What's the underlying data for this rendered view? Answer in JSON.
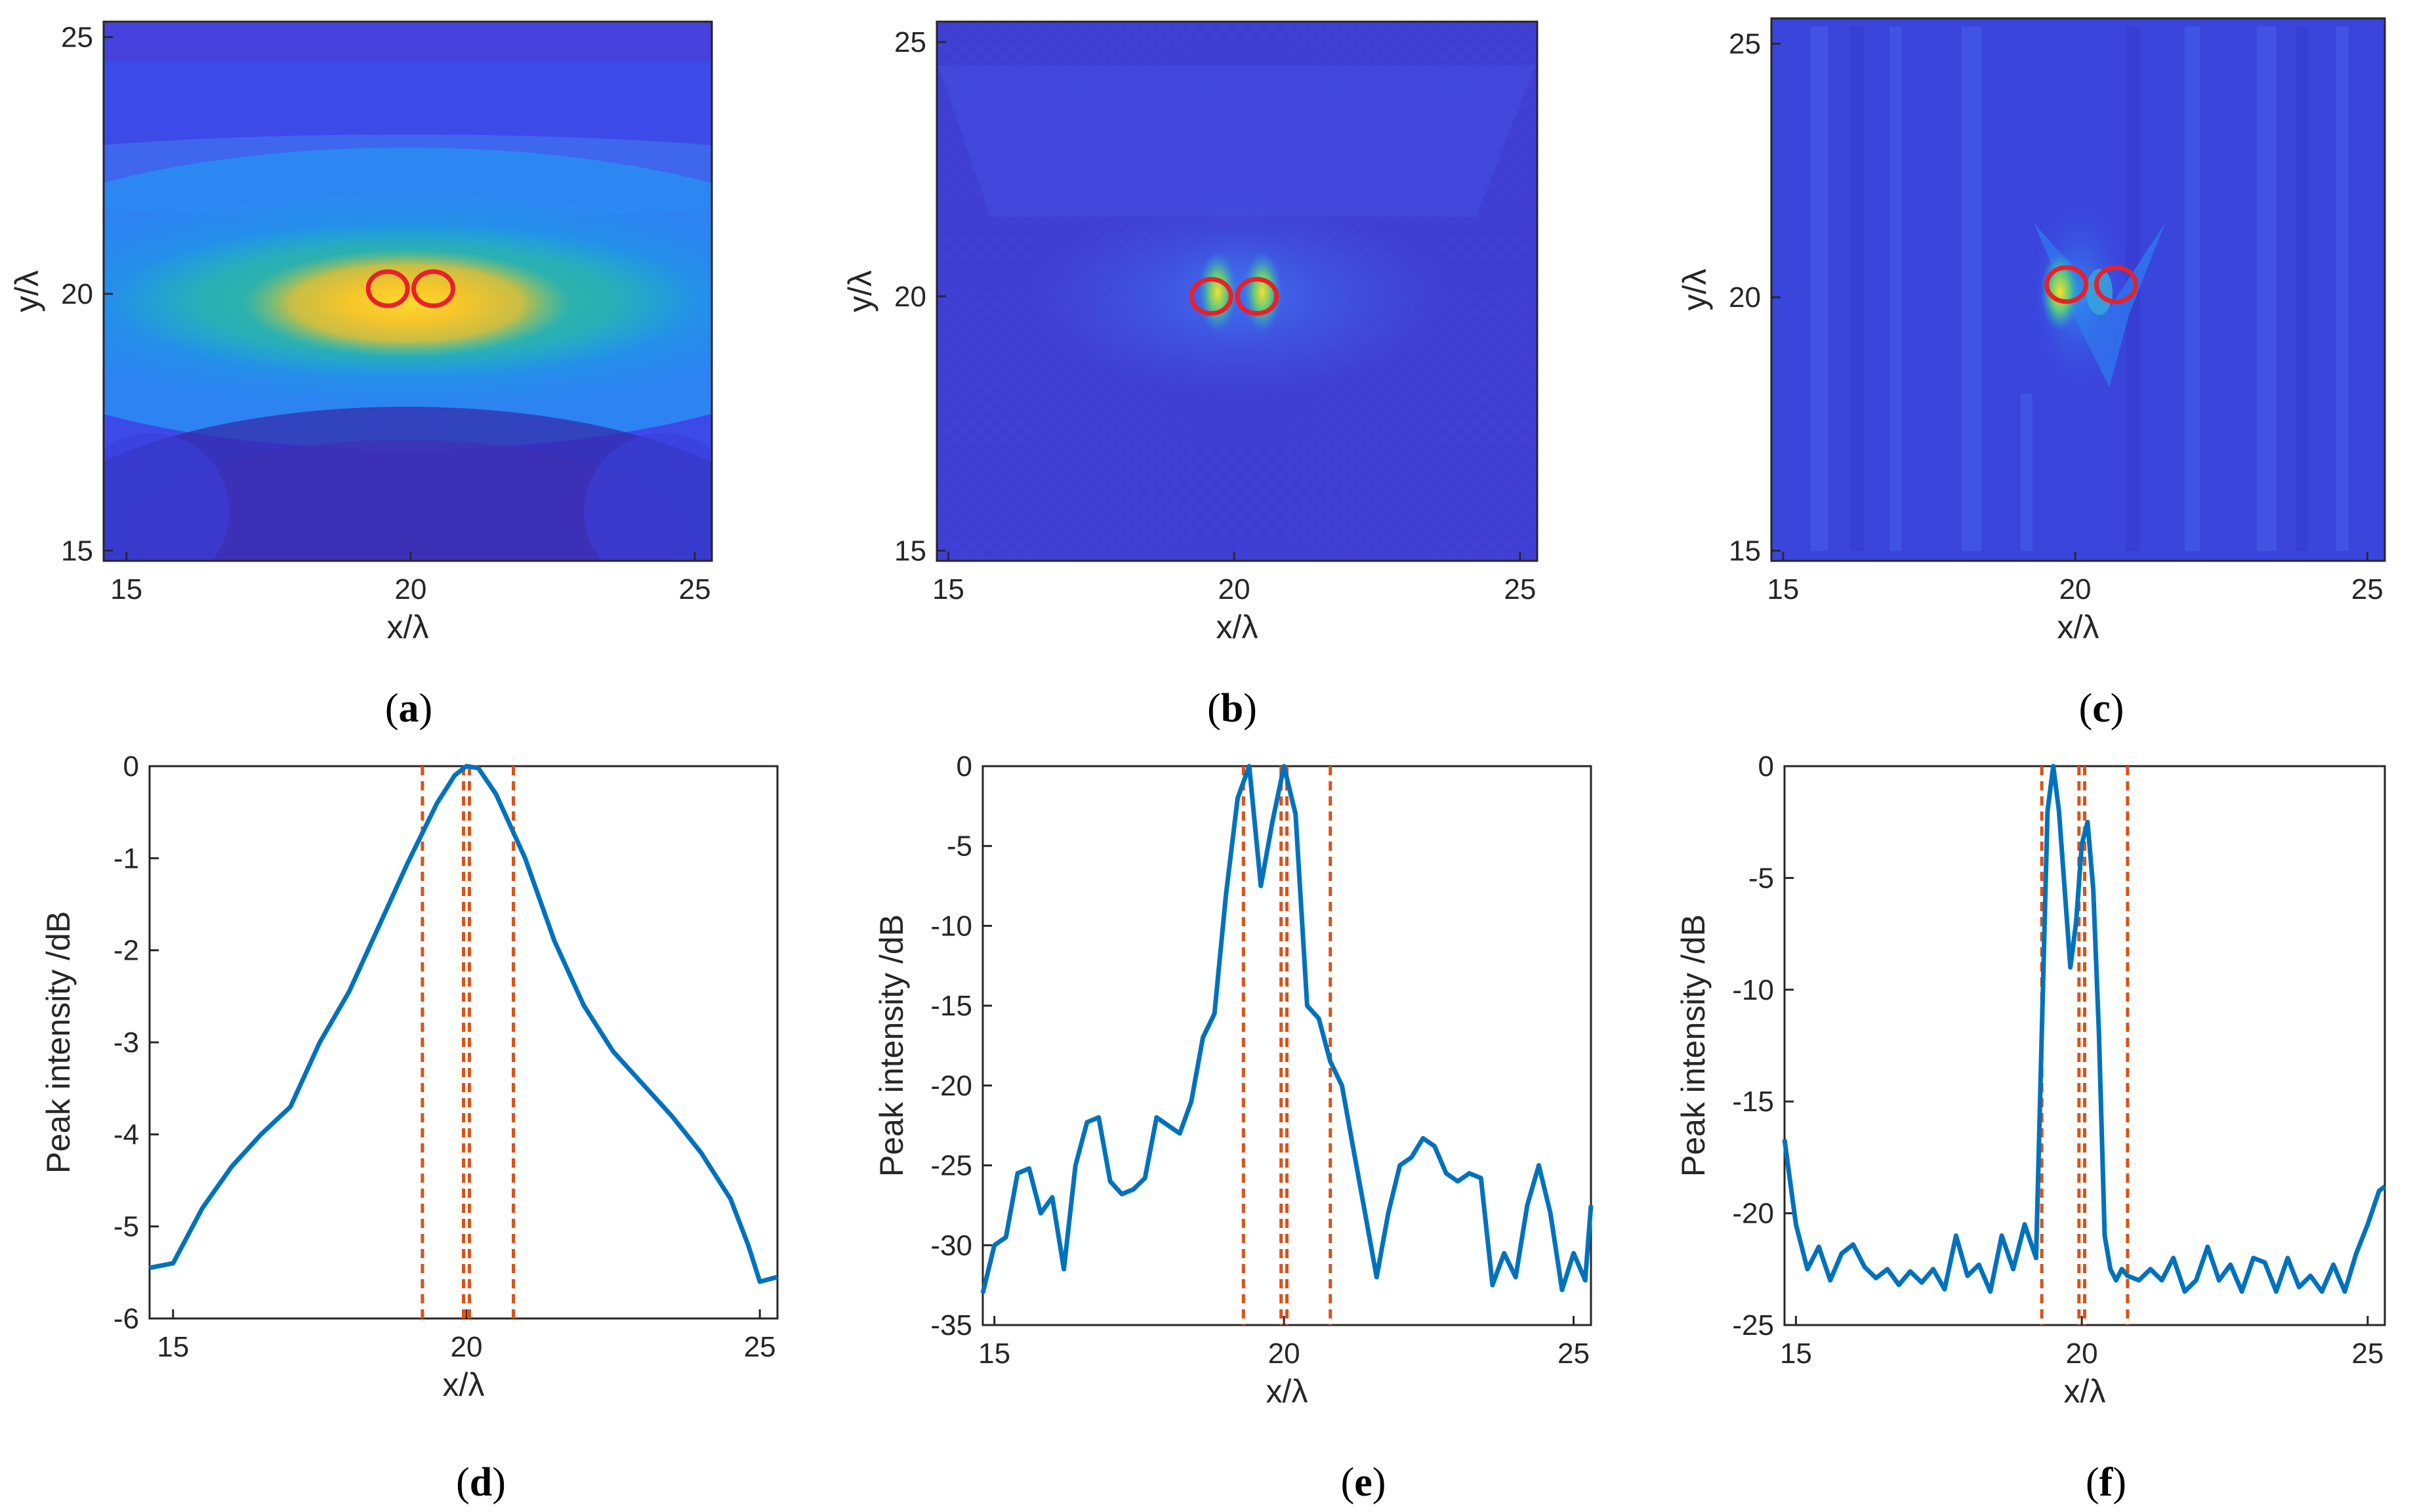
{
  "captions": [
    "a",
    "b",
    "c",
    "d",
    "e",
    "f"
  ],
  "colors": {
    "line": "#0072BD",
    "marker": "#D95319",
    "circle": "#E8202A",
    "axis": "#262626",
    "viridis_low": "#3E26A8",
    "viridis_high": "#F9FB0E"
  },
  "chart_data": [
    {
      "panel": "a",
      "type": "heatmap",
      "xlabel": "x/λ",
      "ylabel": "y/λ",
      "xlim": [
        14.6,
        25.3
      ],
      "ylim": [
        14.8,
        25.3
      ],
      "xticks": [
        15,
        20,
        25
      ],
      "yticks": [
        15,
        20,
        25
      ],
      "colormap": "parula",
      "peak": {
        "x": 20.0,
        "y": 19.9
      },
      "circles": [
        {
          "x": 19.6,
          "y": 20.1
        },
        {
          "x": 20.4,
          "y": 20.1
        }
      ]
    },
    {
      "panel": "b",
      "type": "heatmap",
      "xlabel": "x/λ",
      "ylabel": "y/λ",
      "xlim": [
        14.8,
        25.3
      ],
      "ylim": [
        14.8,
        25.4
      ],
      "xticks": [
        15,
        20,
        25
      ],
      "yticks": [
        15,
        20,
        25
      ],
      "colormap": "parula",
      "circles": [
        {
          "x": 19.6,
          "y": 20.0
        },
        {
          "x": 20.4,
          "y": 20.0
        }
      ]
    },
    {
      "panel": "c",
      "type": "heatmap",
      "xlabel": "x/λ",
      "ylabel": "y/λ",
      "xlim": [
        14.8,
        25.3
      ],
      "ylim": [
        14.8,
        25.5
      ],
      "xticks": [
        15,
        20,
        25
      ],
      "yticks": [
        15,
        20,
        25
      ],
      "colormap": "parula",
      "circles": [
        {
          "x": 19.85,
          "y": 20.25
        },
        {
          "x": 20.7,
          "y": 20.25
        }
      ]
    },
    {
      "panel": "d",
      "type": "line",
      "xlabel": "x/λ",
      "ylabel": "Peak intensity /dB",
      "xlim": [
        14.6,
        25.3
      ],
      "ylim": [
        -6,
        0
      ],
      "xticks": [
        15,
        20,
        25
      ],
      "yticks": [
        -6,
        -5,
        -4,
        -3,
        -2,
        -1,
        0
      ],
      "vlines": [
        19.25,
        19.95,
        20.05,
        20.8
      ],
      "x": [
        14.6,
        15.0,
        15.5,
        16.0,
        16.5,
        17.0,
        17.5,
        18.0,
        18.5,
        19.0,
        19.5,
        19.8,
        20.0,
        20.2,
        20.5,
        21.0,
        21.5,
        22.0,
        22.5,
        23.0,
        23.5,
        24.0,
        24.5,
        24.8,
        25.0,
        25.3
      ],
      "y": [
        -5.45,
        -5.4,
        -4.8,
        -4.35,
        -4.0,
        -3.7,
        -3.0,
        -2.45,
        -1.75,
        -1.05,
        -0.4,
        -0.1,
        0.0,
        -0.02,
        -0.3,
        -1.0,
        -1.9,
        -2.6,
        -3.1,
        -3.45,
        -3.8,
        -4.2,
        -4.7,
        -5.2,
        -5.6,
        -5.55
      ]
    },
    {
      "panel": "e",
      "type": "line",
      "xlabel": "x/λ",
      "ylabel": "Peak intensity /dB",
      "xlim": [
        14.8,
        25.3
      ],
      "ylim": [
        -35,
        0
      ],
      "xticks": [
        15,
        20,
        25
      ],
      "yticks": [
        -35,
        -30,
        -25,
        -20,
        -15,
        -10,
        -5,
        0
      ],
      "vlines": [
        19.3,
        19.95,
        20.05,
        20.8
      ],
      "x": [
        14.8,
        15.0,
        15.2,
        15.4,
        15.6,
        15.8,
        16.0,
        16.2,
        16.4,
        16.6,
        16.8,
        17.0,
        17.2,
        17.4,
        17.6,
        17.8,
        18.0,
        18.2,
        18.4,
        18.6,
        18.8,
        19.0,
        19.2,
        19.4,
        19.6,
        19.8,
        20.0,
        20.2,
        20.4,
        20.6,
        20.8,
        21.0,
        21.2,
        21.4,
        21.6,
        21.8,
        22.0,
        22.2,
        22.4,
        22.6,
        22.8,
        23.0,
        23.2,
        23.4,
        23.6,
        23.8,
        24.0,
        24.2,
        24.4,
        24.6,
        24.8,
        25.0,
        25.2,
        25.3
      ],
      "y": [
        -33,
        -30,
        -29.5,
        -25.5,
        -25.2,
        -28,
        -27,
        -31.5,
        -25,
        -22.3,
        -22,
        -26,
        -26.8,
        -26.5,
        -25.8,
        -22,
        -22.5,
        -23,
        -21,
        -17,
        -15.5,
        -8,
        -2,
        0,
        -7.5,
        -3.5,
        0,
        -3,
        -15,
        -15.8,
        -18.5,
        -20,
        -24,
        -28,
        -32,
        -28,
        -25,
        -24.5,
        -23.3,
        -23.8,
        -25.5,
        -26,
        -25.5,
        -25.8,
        -32.5,
        -30.5,
        -32,
        -27.5,
        -25,
        -28,
        -32.8,
        -30.5,
        -32.2,
        -27.5
      ]
    },
    {
      "panel": "f",
      "type": "line",
      "xlabel": "x/λ",
      "ylabel": "Peak intensity /dB",
      "xlim": [
        14.8,
        25.3
      ],
      "ylim": [
        -25,
        0
      ],
      "xticks": [
        15,
        20,
        25
      ],
      "yticks": [
        -25,
        -20,
        -15,
        -10,
        -5,
        0
      ],
      "vlines": [
        19.3,
        19.95,
        20.05,
        20.8
      ],
      "x": [
        14.8,
        15.0,
        15.2,
        15.4,
        15.6,
        15.8,
        16.0,
        16.2,
        16.4,
        16.6,
        16.8,
        17.0,
        17.2,
        17.4,
        17.6,
        17.8,
        18.0,
        18.2,
        18.4,
        18.6,
        18.8,
        19.0,
        19.2,
        19.3,
        19.4,
        19.5,
        19.6,
        19.7,
        19.8,
        19.9,
        20.0,
        20.1,
        20.2,
        20.3,
        20.4,
        20.5,
        20.6,
        20.7,
        20.8,
        21.0,
        21.2,
        21.4,
        21.6,
        21.8,
        22.0,
        22.2,
        22.4,
        22.6,
        22.8,
        23.0,
        23.2,
        23.4,
        23.6,
        23.8,
        24.0,
        24.2,
        24.4,
        24.6,
        24.8,
        25.0,
        25.2,
        25.3
      ],
      "y": [
        -16.7,
        -20.5,
        -22.5,
        -21.5,
        -23,
        -21.8,
        -21.4,
        -22.4,
        -22.9,
        -22.5,
        -23.2,
        -22.6,
        -23.1,
        -22.5,
        -23.4,
        -21.0,
        -22.8,
        -22.3,
        -23.5,
        -21.0,
        -22.5,
        -20.5,
        -22.0,
        -12.0,
        -2.0,
        0,
        -2.0,
        -5.5,
        -9.0,
        -7.0,
        -3.5,
        -2.5,
        -5.5,
        -12.0,
        -21.0,
        -22.5,
        -23.0,
        -22.5,
        -22.8,
        -23.0,
        -22.5,
        -23.0,
        -22.0,
        -23.5,
        -23.0,
        -21.5,
        -23.0,
        -22.3,
        -23.5,
        -22.0,
        -22.2,
        -23.5,
        -22.0,
        -23.3,
        -22.8,
        -23.5,
        -22.3,
        -23.5,
        -21.8,
        -20.5,
        -19.0,
        -18.8
      ]
    }
  ]
}
